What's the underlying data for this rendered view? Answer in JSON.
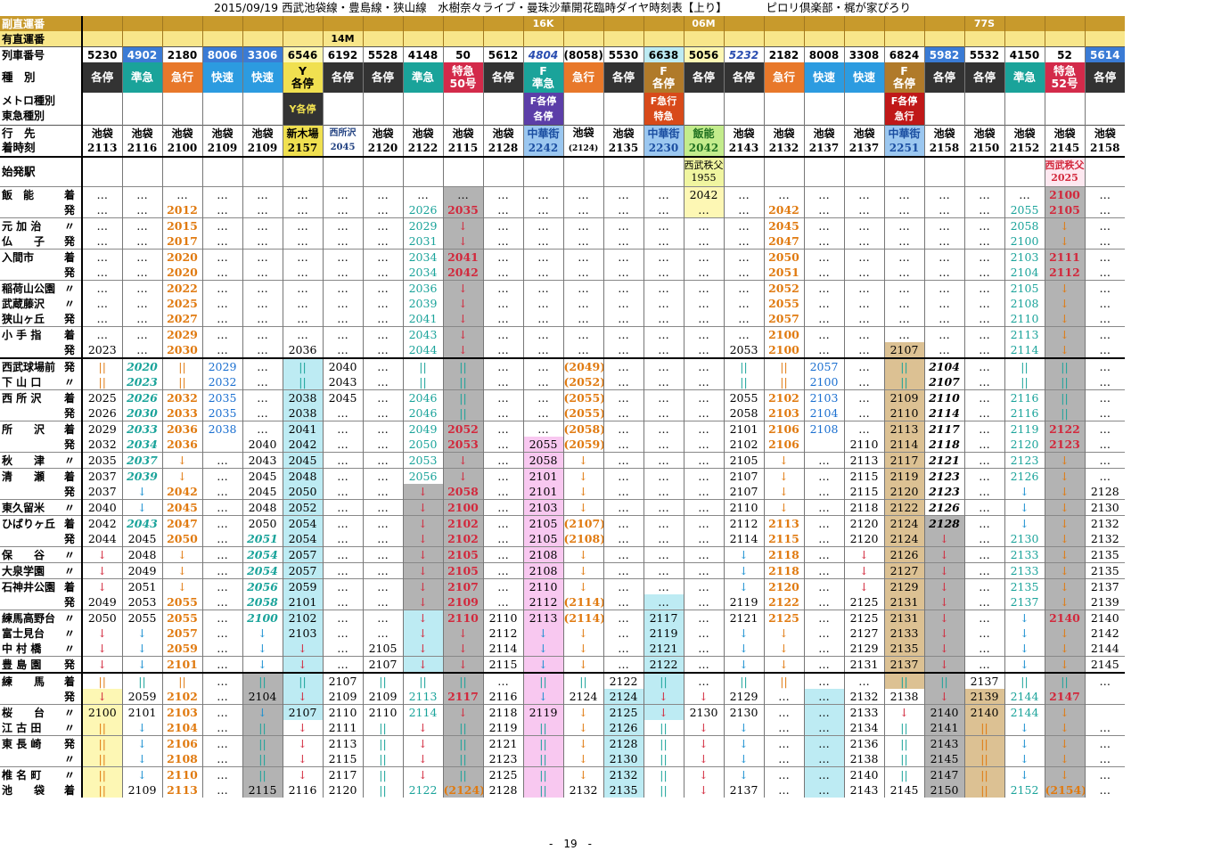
{
  "title": "2015/09/19 西武池袋線・豊島線・狭山線　水樹奈々ライブ・曼珠沙華開花臨時ダイヤ時刻表【上り】　　　　ピロリ倶楽部・梶が家ぴろり",
  "page": "-　19　-",
  "labels": {
    "fuku": "副直運番",
    "yu": "有直運番",
    "num": "列車番号",
    "kind": "種　別",
    "metro": "メトロ種別",
    "tokyu": "東急種別",
    "dest": "行　先",
    "arr": "着時刻",
    "origin": "始発駅"
  },
  "fuku": [
    "",
    "",
    "",
    "",
    "",
    "",
    "",
    "",
    "",
    "",
    "",
    "16K",
    "",
    "",
    "",
    "06M",
    "",
    "",
    "",
    "",
    "",
    "",
    "77S",
    "",
    "",
    "",
    "",
    "",
    ""
  ],
  "yu": [
    "",
    "",
    "",
    "",
    "",
    "",
    "14M",
    "",
    "",
    "",
    "",
    "",
    "",
    "",
    "",
    "",
    "",
    "",
    "",
    "",
    "",
    "",
    "",
    "",
    "",
    "",
    "",
    "",
    ""
  ],
  "nums": [
    "5230",
    "4902",
    "2180",
    "8006",
    "3306",
    "6546",
    "6192",
    "5528",
    "4148",
    "50",
    "5612",
    "4804",
    "(8058)",
    "5530",
    "6638",
    "5056",
    "5232",
    "2182",
    "8008",
    "3308",
    "6824",
    "5982",
    "5532",
    "4150",
    "52",
    "5614"
  ],
  "kinds": [
    "各停",
    "準急",
    "急行",
    "快速",
    "快速",
    "Y\n各停",
    "各停",
    "各停",
    "準急",
    "特急\n50号",
    "各停",
    "F\n準急",
    "急行",
    "各停",
    "F\n各停",
    "各停",
    "各停",
    "急行",
    "快速",
    "快速",
    "F\n各停",
    "各停",
    "各停",
    "準急",
    "特急\n52号",
    "各停"
  ],
  "metro": [
    "",
    "",
    "",
    "",
    "",
    "Y各停",
    "",
    "",
    "",
    "",
    "",
    "F各停\n各停",
    "",
    "",
    "F急行\n特急",
    "",
    "",
    "",
    "",
    "",
    "F各停\n急行",
    "",
    "",
    "",
    "",
    ""
  ],
  "dest_names": [
    "池袋",
    "池袋",
    "池袋",
    "池袋",
    "池袋",
    "新木場",
    "西所沢",
    "池袋",
    "池袋",
    "池袋",
    "池袋",
    "中華街",
    "池袋",
    "池袋",
    "中華街",
    "飯能",
    "池袋",
    "池袋",
    "池袋",
    "池袋",
    "中華街",
    "池袋",
    "池袋",
    "池袋",
    "池袋",
    "池袋"
  ],
  "dest_times": [
    "2113",
    "2116",
    "2100",
    "2109",
    "2109",
    "2157",
    "2045",
    "2120",
    "2122",
    "2115",
    "2128",
    "2242",
    "(2124)",
    "2135",
    "2230",
    "2042",
    "2143",
    "2132",
    "2137",
    "2137",
    "2251",
    "2158",
    "2150",
    "2152",
    "2145",
    "2158"
  ],
  "origin": [
    "",
    "",
    "",
    "",
    "",
    "",
    "",
    "",
    "",
    "",
    "",
    "",
    "",
    "",
    "",
    "西武秩父\n1955",
    "",
    "",
    "",
    "",
    "",
    "",
    "",
    "",
    "西武秩父\n2025",
    ""
  ],
  "stations": [
    {
      "n": "飯　能",
      "k": "着"
    },
    {
      "n": "",
      "k": "発"
    },
    {
      "n": "元 加 治",
      "k": "〃"
    },
    {
      "n": "仏　　子",
      "k": "発"
    },
    {
      "n": "入間市",
      "k": "着"
    },
    {
      "n": "",
      "k": "発"
    },
    {
      "n": "稲荷山公園",
      "k": "〃"
    },
    {
      "n": "武蔵藤沢",
      "k": "〃"
    },
    {
      "n": "狭山ヶ丘",
      "k": "発"
    },
    {
      "n": "小 手 指",
      "k": "着"
    },
    {
      "n": "",
      "k": "発"
    },
    {
      "n": "西武球場前",
      "k": "発"
    },
    {
      "n": "下 山 口",
      "k": "〃"
    },
    {
      "n": "西 所 沢",
      "k": "着"
    },
    {
      "n": "",
      "k": "発"
    },
    {
      "n": "所　　沢",
      "k": "着"
    },
    {
      "n": "",
      "k": "発"
    },
    {
      "n": "秋　　津",
      "k": "〃"
    },
    {
      "n": "清　　瀬",
      "k": "着"
    },
    {
      "n": "",
      "k": "発"
    },
    {
      "n": "東久留米",
      "k": "〃"
    },
    {
      "n": "ひばりヶ丘",
      "k": "着"
    },
    {
      "n": "",
      "k": "発"
    },
    {
      "n": "保　　谷",
      "k": "〃"
    },
    {
      "n": "大泉学園",
      "k": "〃"
    },
    {
      "n": "石神井公園",
      "k": "着"
    },
    {
      "n": "",
      "k": "発"
    },
    {
      "n": "練馬高野台",
      "k": "〃"
    },
    {
      "n": "富士見台",
      "k": "〃"
    },
    {
      "n": "中 村 橋",
      "k": "〃"
    },
    {
      "n": "豊 島 園",
      "k": "発"
    },
    {
      "n": "練　　馬",
      "k": "着"
    },
    {
      "n": "",
      "k": "発"
    },
    {
      "n": "桜　　台",
      "k": "〃"
    },
    {
      "n": "江 古 田",
      "k": "〃"
    },
    {
      "n": "東 長 崎",
      "k": "発"
    },
    {
      "n": "",
      "k": "〃"
    },
    {
      "n": "椎 名 町",
      "k": "〃"
    },
    {
      "n": "池　　袋",
      "k": "着"
    }
  ],
  "grid": [
    [
      "…",
      "…",
      "…",
      "…",
      "…",
      "…",
      "…",
      "…",
      "…",
      "…",
      "…",
      "…",
      "…",
      "…",
      "…",
      "2042",
      "…",
      "…",
      "…",
      "…",
      "…",
      "…",
      "…",
      "…",
      "2100",
      "…"
    ],
    [
      "…",
      "…",
      "2012",
      "…",
      "…",
      "…",
      "…",
      "…",
      "2026",
      "2035",
      "…",
      "…",
      "…",
      "…",
      "…",
      "…",
      "…",
      "2042",
      "…",
      "…",
      "…",
      "…",
      "…",
      "2055",
      "2105",
      "…"
    ],
    [
      "…",
      "…",
      "2015",
      "…",
      "…",
      "…",
      "…",
      "…",
      "2029",
      "↓",
      "…",
      "…",
      "…",
      "…",
      "…",
      "…",
      "…",
      "2045",
      "…",
      "…",
      "…",
      "…",
      "…",
      "2058",
      "↓",
      "…"
    ],
    [
      "…",
      "…",
      "2017",
      "…",
      "…",
      "…",
      "…",
      "…",
      "2031",
      "↓",
      "…",
      "…",
      "…",
      "…",
      "…",
      "…",
      "…",
      "2047",
      "…",
      "…",
      "…",
      "…",
      "…",
      "2100",
      "↓",
      "…"
    ],
    [
      "…",
      "…",
      "2020",
      "…",
      "…",
      "…",
      "…",
      "…",
      "2034",
      "2041",
      "…",
      "…",
      "…",
      "…",
      "…",
      "…",
      "…",
      "2050",
      "…",
      "…",
      "…",
      "…",
      "…",
      "2103",
      "2111",
      "…"
    ],
    [
      "…",
      "…",
      "2020",
      "…",
      "…",
      "…",
      "…",
      "…",
      "2034",
      "2042",
      "…",
      "…",
      "…",
      "…",
      "…",
      "…",
      "…",
      "2051",
      "…",
      "…",
      "…",
      "…",
      "…",
      "2104",
      "2112",
      "…"
    ],
    [
      "…",
      "…",
      "2022",
      "…",
      "…",
      "…",
      "…",
      "…",
      "2036",
      "↓",
      "…",
      "…",
      "…",
      "…",
      "…",
      "…",
      "…",
      "2052",
      "…",
      "…",
      "…",
      "…",
      "…",
      "2105",
      "↓",
      "…"
    ],
    [
      "…",
      "…",
      "2025",
      "…",
      "…",
      "…",
      "…",
      "…",
      "2039",
      "↓",
      "…",
      "…",
      "…",
      "…",
      "…",
      "…",
      "…",
      "2055",
      "…",
      "…",
      "…",
      "…",
      "…",
      "2108",
      "↓",
      "…"
    ],
    [
      "…",
      "…",
      "2027",
      "…",
      "…",
      "…",
      "…",
      "…",
      "2041",
      "↓",
      "…",
      "…",
      "…",
      "…",
      "…",
      "…",
      "…",
      "2057",
      "…",
      "…",
      "…",
      "…",
      "…",
      "2110",
      "↓",
      "…"
    ],
    [
      "…",
      "…",
      "2029",
      "…",
      "…",
      "…",
      "…",
      "…",
      "2043",
      "↓",
      "…",
      "…",
      "…",
      "…",
      "…",
      "…",
      "…",
      "2100",
      "…",
      "…",
      "…",
      "…",
      "…",
      "2113",
      "↓",
      "…"
    ],
    [
      "2023",
      "…",
      "2030",
      "…",
      "…",
      "2036",
      "…",
      "…",
      "2044",
      "↓",
      "…",
      "…",
      "…",
      "…",
      "…",
      "…",
      "2053",
      "2100",
      "…",
      "…",
      "2107",
      "…",
      "…",
      "2114",
      "↓",
      "…"
    ],
    [
      "||",
      "2020",
      "||",
      "2029",
      "…",
      "||",
      "2040",
      "…",
      "||",
      "||",
      "…",
      "…",
      "(2049)",
      "…",
      "…",
      "…",
      "||",
      "||",
      "2057",
      "…",
      "||",
      "2104",
      "…",
      "||",
      "||",
      "…"
    ],
    [
      "||",
      "2023",
      "||",
      "2032",
      "…",
      "||",
      "2043",
      "…",
      "||",
      "||",
      "…",
      "…",
      "(2052)",
      "…",
      "…",
      "…",
      "||",
      "||",
      "2100",
      "…",
      "||",
      "2107",
      "…",
      "||",
      "||",
      "…"
    ],
    [
      "2025",
      "2026",
      "2032",
      "2035",
      "…",
      "2038",
      "2045",
      "…",
      "2046",
      "||",
      "…",
      "…",
      "(2055)",
      "…",
      "…",
      "…",
      "2055",
      "2102",
      "2103",
      "…",
      "2109",
      "2110",
      "…",
      "2116",
      "||",
      "…"
    ],
    [
      "2026",
      "2030",
      "2033",
      "2035",
      "…",
      "2038",
      "…",
      "…",
      "2046",
      "||",
      "…",
      "…",
      "(2055)",
      "…",
      "…",
      "…",
      "2058",
      "2103",
      "2104",
      "…",
      "2110",
      "2114",
      "…",
      "2116",
      "||",
      "…"
    ],
    [
      "2029",
      "2033",
      "2036",
      "2038",
      "…",
      "2041",
      "…",
      "…",
      "2049",
      "2052",
      "…",
      "…",
      "(2058)",
      "…",
      "…",
      "…",
      "2101",
      "2106",
      "2108",
      "…",
      "2113",
      "2117",
      "…",
      "2119",
      "2122",
      "…"
    ],
    [
      "2032",
      "2034",
      "2036",
      "",
      "2040",
      "2042",
      "…",
      "…",
      "2050",
      "2053",
      "…",
      "2055",
      "(2059)",
      "…",
      "…",
      "…",
      "2102",
      "2106",
      "",
      "2110",
      "2114",
      "2118",
      "…",
      "2120",
      "2123",
      "…"
    ],
    [
      "2035",
      "2037",
      "↓",
      "…",
      "2043",
      "2045",
      "…",
      "…",
      "2053",
      "↓",
      "…",
      "2058",
      "↓",
      "…",
      "…",
      "…",
      "2105",
      "↓",
      "…",
      "2113",
      "2117",
      "2121",
      "…",
      "2123",
      "↓",
      "…"
    ],
    [
      "2037",
      "2039",
      "↓",
      "…",
      "2045",
      "2048",
      "…",
      "…",
      "2056",
      "↓",
      "…",
      "2101",
      "↓",
      "…",
      "…",
      "…",
      "2107",
      "↓",
      "…",
      "2115",
      "2119",
      "2123",
      "…",
      "2126",
      "↓",
      "…"
    ],
    [
      "2037",
      "↓",
      "2042",
      "…",
      "2045",
      "2050",
      "…",
      "…",
      "↓",
      "2058",
      "…",
      "2101",
      "↓",
      "…",
      "…",
      "…",
      "2107",
      "↓",
      "…",
      "2115",
      "2120",
      "2123",
      "…",
      "↓",
      "↓",
      "2128"
    ],
    [
      "2040",
      "↓",
      "2045",
      "…",
      "2048",
      "2052",
      "…",
      "…",
      "↓",
      "2100",
      "…",
      "2103",
      "↓",
      "…",
      "…",
      "…",
      "2110",
      "↓",
      "…",
      "2118",
      "2122",
      "2126",
      "…",
      "↓",
      "↓",
      "2130"
    ],
    [
      "2042",
      "2043",
      "2047",
      "…",
      "2050",
      "2054",
      "…",
      "…",
      "↓",
      "2102",
      "…",
      "2105",
      "(2107)",
      "…",
      "…",
      "…",
      "2112",
      "2113",
      "…",
      "2120",
      "2124",
      "2128",
      "…",
      "↓",
      "↓",
      "2132"
    ],
    [
      "2044",
      "2045",
      "2050",
      "…",
      "2051",
      "2054",
      "…",
      "…",
      "↓",
      "2102",
      "…",
      "2105",
      "(2108)",
      "…",
      "…",
      "…",
      "2114",
      "2115",
      "…",
      "2120",
      "2124",
      "↓",
      "…",
      "2130",
      "↓",
      "2132"
    ],
    [
      "↓",
      "2048",
      "↓",
      "…",
      "2054",
      "2057",
      "…",
      "…",
      "↓",
      "2105",
      "…",
      "2108",
      "↓",
      "…",
      "…",
      "…",
      "↓",
      "2118",
      "…",
      "↓",
      "2126",
      "↓",
      "…",
      "2133",
      "↓",
      "2135"
    ],
    [
      "↓",
      "2049",
      "↓",
      "…",
      "2054",
      "2057",
      "…",
      "…",
      "↓",
      "2105",
      "…",
      "2108",
      "↓",
      "…",
      "…",
      "…",
      "↓",
      "2118",
      "…",
      "↓",
      "2127",
      "↓",
      "…",
      "2133",
      "↓",
      "2135"
    ],
    [
      "↓",
      "2051",
      "↓",
      "…",
      "2056",
      "2059",
      "…",
      "…",
      "↓",
      "2107",
      "…",
      "2110",
      "↓",
      "…",
      "…",
      "…",
      "↓",
      "2120",
      "…",
      "↓",
      "2129",
      "↓",
      "…",
      "2135",
      "↓",
      "2137"
    ],
    [
      "2049",
      "2053",
      "2055",
      "…",
      "2058",
      "2101",
      "…",
      "…",
      "↓",
      "2109",
      "…",
      "2112",
      "(2114)",
      "…",
      "…",
      "…",
      "2119",
      "2122",
      "…",
      "2125",
      "2131",
      "↓",
      "…",
      "2137",
      "↓",
      "2139"
    ],
    [
      "2050",
      "2055",
      "2055",
      "…",
      "2100",
      "2102",
      "…",
      "…",
      "↓",
      "2110",
      "2110",
      "2113",
      "(2114)",
      "…",
      "2117",
      "…",
      "2121",
      "2125",
      "…",
      "2125",
      "2131",
      "↓",
      "…",
      "↓",
      "2140",
      "2140"
    ],
    [
      "↓",
      "↓",
      "2057",
      "…",
      "↓",
      "2103",
      "…",
      "…",
      "↓",
      "↓",
      "2112",
      "↓",
      "↓",
      "…",
      "2119",
      "…",
      "↓",
      "↓",
      "…",
      "2127",
      "2133",
      "↓",
      "…",
      "↓",
      "↓",
      "2142"
    ],
    [
      "↓",
      "↓",
      "2059",
      "…",
      "↓",
      "↓",
      "…",
      "2105",
      "↓",
      "↓",
      "2114",
      "↓",
      "↓",
      "…",
      "2121",
      "…",
      "↓",
      "↓",
      "…",
      "2129",
      "2135",
      "↓",
      "…",
      "↓",
      "↓",
      "2144"
    ],
    [
      "↓",
      "↓",
      "2101",
      "…",
      "↓",
      "↓",
      "…",
      "2107",
      "↓",
      "↓",
      "2115",
      "↓",
      "↓",
      "…",
      "2122",
      "…",
      "↓",
      "↓",
      "…",
      "2131",
      "2137",
      "↓",
      "…",
      "↓",
      "↓",
      "2145"
    ],
    [
      "||",
      "||",
      "||",
      "…",
      "||",
      "||",
      "2107",
      "||",
      "||",
      "||",
      "…",
      "||",
      "||",
      "2122",
      "||",
      "…",
      "||",
      "||",
      "…",
      "…",
      "||",
      "||",
      "2137",
      "||",
      "||",
      "…"
    ],
    [
      "↓",
      "2059",
      "2102",
      "…",
      "2104",
      "↓",
      "2109",
      "2109",
      "2113",
      "2117",
      "2116",
      "↓",
      "2124",
      "2124",
      "↓",
      "↓",
      "2129",
      "…",
      "…",
      "2132",
      "2138",
      "↓",
      "2139",
      "2144",
      "2147",
      ""
    ],
    [
      "2100",
      "2101",
      "2103",
      "…",
      "↓",
      "2107",
      "2110",
      "2110",
      "2114",
      "↓",
      "2118",
      "2119",
      "↓",
      "2125",
      "↓",
      "2130",
      "2130",
      "…",
      "…",
      "2133",
      "↓",
      "2140",
      "2140",
      "2144",
      "↓",
      ""
    ],
    [
      "||",
      "↓",
      "2104",
      "…",
      "||",
      "↓",
      "2111",
      "||",
      "↓",
      "||",
      "2119",
      "||",
      "↓",
      "2126",
      "||",
      "↓",
      "↓",
      "…",
      "…",
      "2134",
      "||",
      "2141",
      "||",
      "↓",
      "↓",
      "…"
    ],
    [
      "||",
      "↓",
      "2106",
      "…",
      "||",
      "↓",
      "2113",
      "||",
      "↓",
      "||",
      "2121",
      "||",
      "↓",
      "2128",
      "||",
      "↓",
      "↓",
      "…",
      "…",
      "2136",
      "||",
      "2143",
      "||",
      "↓",
      "↓",
      "…"
    ],
    [
      "||",
      "↓",
      "2108",
      "…",
      "||",
      "↓",
      "2115",
      "||",
      "↓",
      "||",
      "2123",
      "||",
      "↓",
      "2130",
      "||",
      "↓",
      "↓",
      "…",
      "…",
      "2138",
      "||",
      "2145",
      "||",
      "↓",
      "↓",
      "…"
    ],
    [
      "||",
      "↓",
      "2110",
      "…",
      "||",
      "↓",
      "2117",
      "||",
      "↓",
      "||",
      "2125",
      "||",
      "↓",
      "2132",
      "||",
      "↓",
      "↓",
      "…",
      "…",
      "2140",
      "||",
      "2147",
      "||",
      "↓",
      "↓",
      "…"
    ],
    [
      "||",
      "2109",
      "2113",
      "…",
      "2115",
      "2116",
      "2120",
      "||",
      "2122",
      "(2124)",
      "2128",
      "||",
      "2132",
      "2135",
      "||",
      "↓",
      "2137",
      "…",
      "…",
      "2143",
      "2145",
      "2150",
      "||",
      "2152",
      "(2154)",
      "…"
    ]
  ]
}
